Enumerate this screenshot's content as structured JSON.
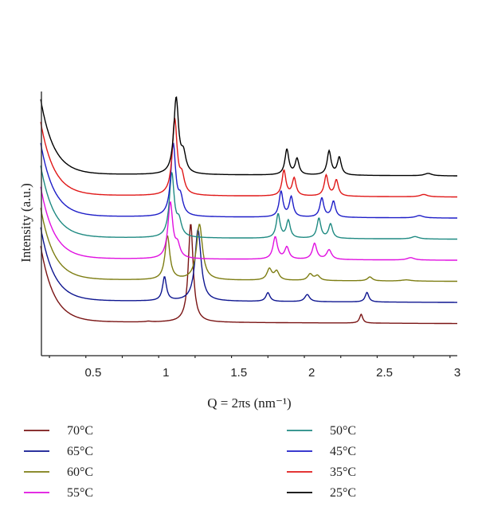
{
  "chart_data": {
    "type": "line",
    "xlabel": "Q = 2πs (nm⁻¹)",
    "ylabel": "Intensity (a.u.)",
    "xlim": [
      0.12,
      3.0
    ],
    "x_ticks": [
      "0.5",
      "1",
      "1.5",
      "2",
      "2.5",
      "3"
    ],
    "x_tick_values": [
      0.5,
      1.0,
      1.5,
      2.0,
      2.5,
      3.0
    ],
    "grid": false,
    "legend_position": "bottom",
    "series": [
      {
        "name": "70°C",
        "color": "#7a1414",
        "offset": 0,
        "base": 0.0,
        "tail": -0.8,
        "low_a": 95,
        "low_d": 0.09,
        "peaks": [
          [
            0.88,
            0.8,
            0.02
          ],
          [
            1.17,
            124,
            0.02
          ],
          [
            2.34,
            11,
            0.013
          ]
        ]
      },
      {
        "name": "65°C",
        "color": "#0e1690",
        "offset": 1,
        "base": 0.0,
        "tail": -0.8,
        "low_a": 92,
        "low_d": 0.09,
        "peaks": [
          [
            0.99,
            30,
            0.016
          ],
          [
            1.22,
            90,
            0.025
          ],
          [
            1.7,
            11,
            0.017
          ],
          [
            1.97,
            9,
            0.02
          ],
          [
            2.38,
            12,
            0.015
          ]
        ]
      },
      {
        "name": "60°C",
        "color": "#7d7d12",
        "offset": 2,
        "base": 0.0,
        "tail": -0.8,
        "low_a": 90,
        "low_d": 0.09,
        "peaks": [
          [
            1.01,
            55,
            0.02
          ],
          [
            1.23,
            70,
            0.025
          ],
          [
            1.71,
            14,
            0.02
          ],
          [
            1.76,
            11,
            0.02
          ],
          [
            1.99,
            8,
            0.02
          ],
          [
            2.04,
            6,
            0.02
          ],
          [
            2.4,
            5,
            0.02
          ],
          [
            2.65,
            1.5,
            0.04
          ]
        ]
      },
      {
        "name": "55°C",
        "color": "#e010e0",
        "offset": 3,
        "base": 0.0,
        "tail": -0.8,
        "low_a": 90,
        "low_d": 0.09,
        "peaks": [
          [
            1.03,
            70,
            0.02
          ],
          [
            1.08,
            15,
            0.02
          ],
          [
            1.75,
            28,
            0.018
          ],
          [
            1.83,
            15,
            0.018
          ],
          [
            2.02,
            20,
            0.018
          ],
          [
            2.12,
            12,
            0.02
          ],
          [
            2.68,
            3,
            0.03
          ]
        ]
      },
      {
        "name": "50°C",
        "color": "#1f8a82",
        "offset": 4,
        "base": 0.0,
        "tail": -0.8,
        "low_a": 90,
        "low_d": 0.09,
        "peaks": [
          [
            1.04,
            80,
            0.02
          ],
          [
            1.09,
            18,
            0.02
          ],
          [
            1.77,
            30,
            0.016
          ],
          [
            1.84,
            22,
            0.016
          ],
          [
            2.05,
            25,
            0.016
          ],
          [
            2.13,
            18,
            0.016
          ],
          [
            2.71,
            3,
            0.03
          ]
        ]
      },
      {
        "name": "45°C",
        "color": "#1e1ec8",
        "offset": 5,
        "base": 0.0,
        "tail": -0.8,
        "low_a": 92,
        "low_d": 0.09,
        "peaks": [
          [
            1.05,
            90,
            0.02
          ],
          [
            1.1,
            20,
            0.02
          ],
          [
            1.79,
            32,
            0.016
          ],
          [
            1.86,
            25,
            0.016
          ],
          [
            2.07,
            24,
            0.016
          ],
          [
            2.15,
            20,
            0.016
          ],
          [
            2.74,
            3,
            0.03
          ]
        ]
      },
      {
        "name": "35°C",
        "color": "#e01818",
        "offset": 6,
        "base": 0.0,
        "tail": -0.8,
        "low_a": 92,
        "low_d": 0.09,
        "peaks": [
          [
            1.06,
            95,
            0.02
          ],
          [
            1.11,
            20,
            0.02
          ],
          [
            1.81,
            32,
            0.016
          ],
          [
            1.88,
            22,
            0.016
          ],
          [
            2.1,
            26,
            0.016
          ],
          [
            2.17,
            20,
            0.016
          ],
          [
            2.77,
            3,
            0.03
          ]
        ]
      },
      {
        "name": "25°C",
        "color": "#000000",
        "offset": 7,
        "base": 0.0,
        "tail": -0.8,
        "low_a": 94,
        "low_d": 0.09,
        "peaks": [
          [
            1.07,
            95,
            0.02
          ],
          [
            1.12,
            22,
            0.02
          ],
          [
            1.83,
            32,
            0.016
          ],
          [
            1.9,
            20,
            0.016
          ],
          [
            2.12,
            30,
            0.016
          ],
          [
            2.19,
            22,
            0.016
          ],
          [
            2.8,
            3,
            0.03
          ]
        ]
      }
    ],
    "legend": [
      {
        "label": "70°C",
        "color": "#7a1414"
      },
      {
        "label": "50°C",
        "color": "#1f8a82"
      },
      {
        "label": "65°C",
        "color": "#0e1690"
      },
      {
        "label": "45°C",
        "color": "#1e1ec8"
      },
      {
        "label": "60°C",
        "color": "#7d7d12"
      },
      {
        "label": "35°C",
        "color": "#e01818"
      },
      {
        "label": "55°C",
        "color": "#e010e0"
      },
      {
        "label": "25°C",
        "color": "#000000"
      }
    ]
  }
}
